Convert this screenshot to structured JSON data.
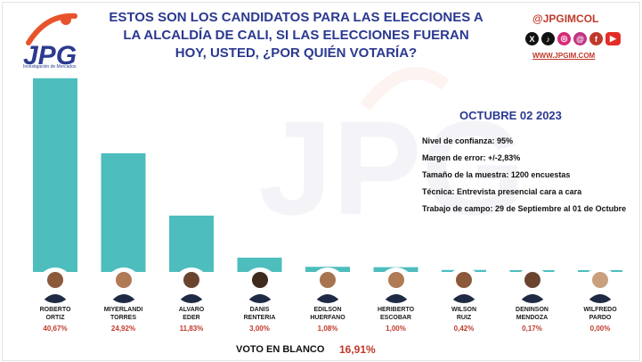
{
  "header": {
    "title": "ESTOS SON LOS CANDIDATOS PARA LAS ELECCIONES A LA ALCALDÍA DE CALI, SI LAS ELECCIONES FUERAN HOY, USTED, ¿POR QUIÉN VOTARÍA?",
    "logo_text": "JPG",
    "logo_subtitle": "Investigación de Mercados",
    "handle": "@JPGIMCOL",
    "website": "WWW.JPGIM.COM",
    "social_icons": [
      "x-icon",
      "tiktok-icon",
      "instagram-icon",
      "threads-icon",
      "facebook-icon",
      "youtube-icon"
    ]
  },
  "survey": {
    "date": "OCTUBRE 02 2023",
    "confidence": "Nivel de confianza: 95%",
    "margin": "Margen de error: +/-2,83%",
    "sample": "Tamaño de la muestra: 1200 encuestas",
    "technique": "Técnica: Entrevista presencial cara a cara",
    "fieldwork": "Trabajo de campo: 29 de Septiembre al 01 de Octubre"
  },
  "colors": {
    "bar": "#4dbdbd",
    "accent": "#c0392b",
    "title": "#2b3990"
  },
  "chart_data": {
    "type": "bar",
    "categories": [
      "ROBERTO ORTIZ",
      "MIYERLANDI TORRES",
      "ALVARO EDER",
      "DANIS RENTERIA",
      "EDILSON HUERFANO",
      "HERIBERTO ESCOBAR",
      "WILSON RUIZ",
      "DENINSON MENDOZA",
      "WILFREDO PARDO"
    ],
    "category_lines": [
      [
        "ROBERTO",
        "ORTIZ"
      ],
      [
        "MIYERLANDI",
        "TORRES"
      ],
      [
        "ALVARO",
        "EDER"
      ],
      [
        "DANIS",
        "RENTERIA"
      ],
      [
        "EDILSON",
        "HUERFANO"
      ],
      [
        "HERIBERTO",
        "ESCOBAR"
      ],
      [
        "WILSON",
        "RUIZ"
      ],
      [
        "DENINSON",
        "MENDOZA"
      ],
      [
        "WILFREDO",
        "PARDO"
      ]
    ],
    "values": [
      40.67,
      24.92,
      11.83,
      3.0,
      1.08,
      1.0,
      0.42,
      0.17,
      0.0
    ],
    "value_labels": [
      "40,67%",
      "24,92%",
      "11,83%",
      "3,00%",
      "1,08%",
      "1,00%",
      "0,42%",
      "0,17%",
      "0,00%"
    ],
    "ylim": [
      0,
      41
    ],
    "grid": false,
    "extra": {
      "label": "VOTO EN BLANCO",
      "value": 16.91,
      "value_label": "16,91%"
    }
  }
}
